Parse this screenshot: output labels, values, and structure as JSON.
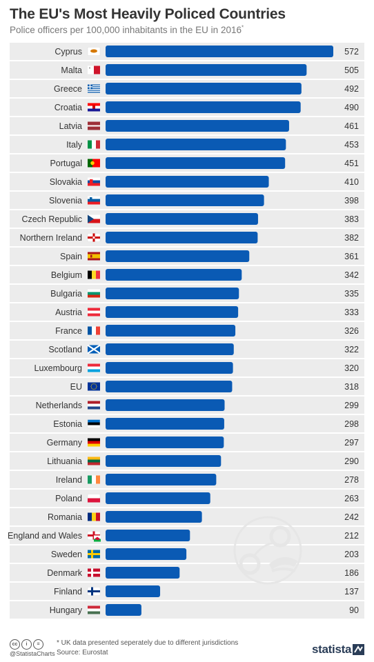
{
  "header": {
    "title": "The EU's Most Heavily Policed Countries",
    "subtitle": "Police officers per 100,000 inhabitants in the EU in 2016",
    "subtitle_mark": "*"
  },
  "chart_data": {
    "type": "bar",
    "orientation": "horizontal",
    "title": "The EU's Most Heavily Policed Countries",
    "subtitle": "Police officers per 100,000 inhabitants in the EU in 2016*",
    "categories": [
      "Cyprus",
      "Malta",
      "Greece",
      "Croatia",
      "Latvia",
      "Italy",
      "Portugal",
      "Slovakia",
      "Slovenia",
      "Czech Republic",
      "Northern Ireland",
      "Spain",
      "Belgium",
      "Bulgaria",
      "Austria",
      "France",
      "Scotland",
      "Luxembourg",
      "EU",
      "Netherlands",
      "Estonia",
      "Germany",
      "Lithuania",
      "Ireland",
      "Poland",
      "Romania",
      "England and Wales",
      "Sweden",
      "Denmark",
      "Finland",
      "Hungary"
    ],
    "values": [
      572,
      505,
      492,
      490,
      461,
      453,
      451,
      410,
      398,
      383,
      382,
      361,
      342,
      335,
      333,
      326,
      322,
      320,
      318,
      299,
      298,
      297,
      290,
      278,
      263,
      242,
      212,
      203,
      186,
      137,
      90
    ],
    "flags": [
      "cyprus-flag",
      "malta-flag",
      "greece-flag",
      "croatia-flag",
      "latvia-flag",
      "italy-flag",
      "portugal-flag",
      "slovakia-flag",
      "slovenia-flag",
      "czech-republic-flag",
      "northern-ireland-flag",
      "spain-flag",
      "belgium-flag",
      "bulgaria-flag",
      "austria-flag",
      "france-flag",
      "scotland-flag",
      "luxembourg-flag",
      "eu-flag",
      "netherlands-flag",
      "estonia-flag",
      "germany-flag",
      "lithuania-flag",
      "ireland-flag",
      "poland-flag",
      "romania-flag",
      "england-and-wales-flag",
      "sweden-flag",
      "denmark-flag",
      "finland-flag",
      "hungary-flag"
    ],
    "xlim": [
      0,
      572
    ],
    "bar_color": "#0a5ab4",
    "row_stripe_color": "#ececec",
    "grid": false,
    "legend": "none"
  },
  "watermark": {
    "icon": "handcuffs-police-cap-icon"
  },
  "footer": {
    "cc_icons": [
      "cc",
      "i",
      "="
    ],
    "handle": "@StatistaCharts",
    "note": "* UK data presented seperately due to different jurisdictions",
    "source": "Source: Eurostat",
    "brand": "statista",
    "brand_icon": "statista-logo-icon"
  }
}
